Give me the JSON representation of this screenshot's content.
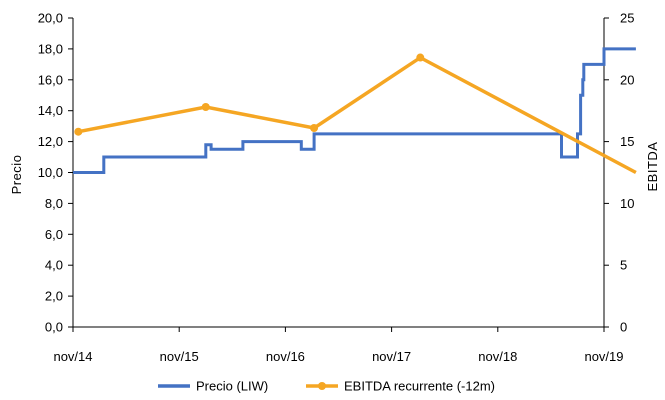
{
  "chart_data": {
    "type": "line",
    "x_ticks": [
      "nov/14",
      "nov/15",
      "nov/16",
      "nov/17",
      "nov/18",
      "nov/19"
    ],
    "ylabel_left": "Precio",
    "ylabel_right": "EBITDA",
    "ylim_left": [
      0,
      20
    ],
    "ylim_right": [
      0,
      25
    ],
    "y_ticks_left": [
      "0,0",
      "2,0",
      "4,0",
      "6,0",
      "8,0",
      "10,0",
      "12,0",
      "14,0",
      "16,0",
      "18,0",
      "20,0"
    ],
    "y_ticks_right": [
      "0",
      "5",
      "10",
      "15",
      "20",
      "25"
    ],
    "grid": false,
    "legend_position": "bottom",
    "colors": {
      "price": "#4472C4",
      "ebitda": "#F5A623",
      "axis": "#000000"
    },
    "series": [
      {
        "name": "Precio (LIW)",
        "axis": "left",
        "step": true,
        "points": [
          [
            0.0,
            10.0
          ],
          [
            0.29,
            10.0
          ],
          [
            0.29,
            11.0
          ],
          [
            1.25,
            11.0
          ],
          [
            1.25,
            11.8
          ],
          [
            1.3,
            11.8
          ],
          [
            1.3,
            11.5
          ],
          [
            1.6,
            11.5
          ],
          [
            1.6,
            12.0
          ],
          [
            2.15,
            12.0
          ],
          [
            2.15,
            11.5
          ],
          [
            2.27,
            11.5
          ],
          [
            2.27,
            12.5
          ],
          [
            4.6,
            12.5
          ],
          [
            4.6,
            11.0
          ],
          [
            4.75,
            11.0
          ],
          [
            4.75,
            12.5
          ],
          [
            4.78,
            12.5
          ],
          [
            4.78,
            15.0
          ],
          [
            4.8,
            15.0
          ],
          [
            4.8,
            16.0
          ],
          [
            4.81,
            16.0
          ],
          [
            4.81,
            17.0
          ],
          [
            5.0,
            17.0
          ],
          [
            5.0,
            18.0
          ],
          [
            5.3,
            18.0
          ]
        ]
      },
      {
        "name": "EBITDA recurrente (-12m)",
        "axis": "right",
        "step": false,
        "markers": true,
        "points": [
          [
            0.05,
            15.8
          ],
          [
            1.25,
            17.8
          ],
          [
            2.27,
            16.1
          ],
          [
            3.27,
            21.8
          ],
          [
            5.3,
            12.5
          ]
        ]
      }
    ]
  }
}
